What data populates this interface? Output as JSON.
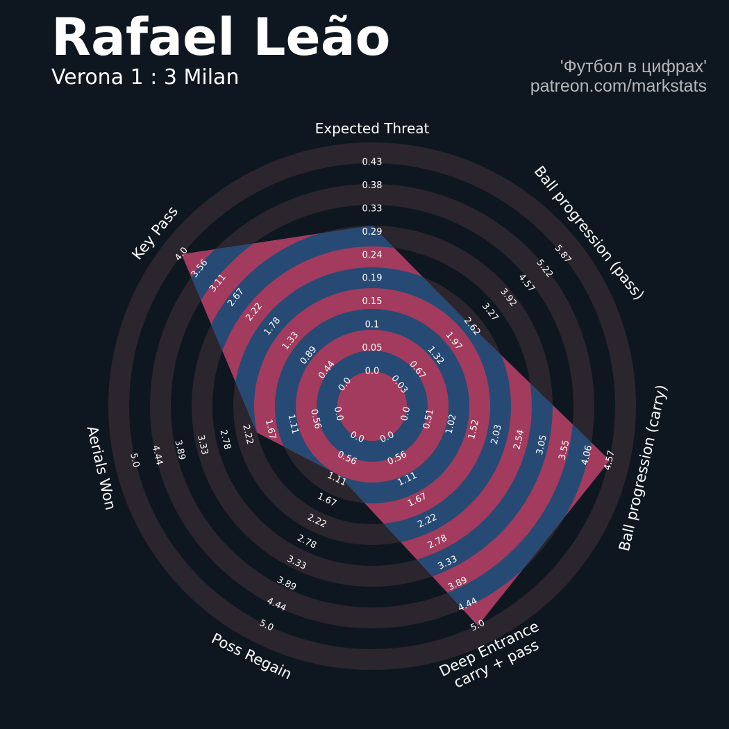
{
  "title": "Rafael Leão",
  "subtitle": "Verona 1 : 3 Milan",
  "credits": [
    "'Футбол в цифрах'",
    "patreon.com/markstats"
  ],
  "colors": {
    "background": "#0e1720",
    "outer_ring": "#2b252d",
    "inner_ring_a": "#a23b5d",
    "inner_ring_b": "#264a74"
  },
  "chart_data": {
    "type": "radar",
    "title": "Rafael Leão",
    "axes": [
      {
        "label": "Expected Threat",
        "label_lines": [
          "Expected Threat"
        ],
        "value": 0.3,
        "range": [
          0.0,
          0.43
        ],
        "ticks": [
          "0.0",
          "0.05",
          "0.1",
          "0.15",
          "0.19",
          "0.24",
          "0.29",
          "0.33",
          "0.38",
          "0.43"
        ]
      },
      {
        "label": "Ball progression (pass)",
        "label_lines": [
          "Ball progression (pass)"
        ],
        "value": 2.62,
        "range": [
          0.03,
          5.87
        ],
        "ticks": [
          "0.03",
          "0.67",
          "1.32",
          "1.97",
          "2.62",
          "3.27",
          "3.92",
          "4.57",
          "5.22",
          "5.87"
        ]
      },
      {
        "label": "Ball progression (carry)",
        "label_lines": [
          "Ball progression (carry)"
        ],
        "value": 4.57,
        "range": [
          0.0,
          4.57
        ],
        "ticks": [
          "0.0",
          "0.51",
          "1.02",
          "1.52",
          "2.03",
          "2.54",
          "3.05",
          "3.55",
          "4.06",
          "4.57"
        ]
      },
      {
        "label": "Deep Entrance carry + pass",
        "label_lines": [
          "Deep Entrance",
          "carry + pass"
        ],
        "value": 5.0,
        "range": [
          0.0,
          5.0
        ],
        "ticks": [
          "0.0",
          "0.56",
          "1.11",
          "1.67",
          "2.22",
          "2.78",
          "3.33",
          "3.89",
          "4.44",
          "5.0"
        ]
      },
      {
        "label": "Poss Regain",
        "label_lines": [
          "Poss Regain"
        ],
        "value": 1.0,
        "range": [
          0.0,
          5.0
        ],
        "ticks": [
          "0.0",
          "0.56",
          "1.11",
          "1.67",
          "2.22",
          "2.78",
          "3.33",
          "3.89",
          "4.44",
          "5.0"
        ]
      },
      {
        "label": "Aerials Won",
        "label_lines": [
          "Aerials Won"
        ],
        "value": 2.0,
        "range": [
          0.0,
          5.0
        ],
        "ticks": [
          "0.0",
          "0.56",
          "1.11",
          "1.67",
          "2.22",
          "2.78",
          "3.33",
          "3.89",
          "4.44",
          "5.0"
        ]
      },
      {
        "label": "Key Pass",
        "label_lines": [
          "Key Pass"
        ],
        "value": 4.0,
        "range": [
          0.0,
          4.0
        ],
        "ticks": [
          "0.0",
          "0.44",
          "0.89",
          "1.33",
          "1.78",
          "2.22",
          "2.67",
          "3.11",
          "3.56",
          "4.0"
        ]
      }
    ]
  }
}
